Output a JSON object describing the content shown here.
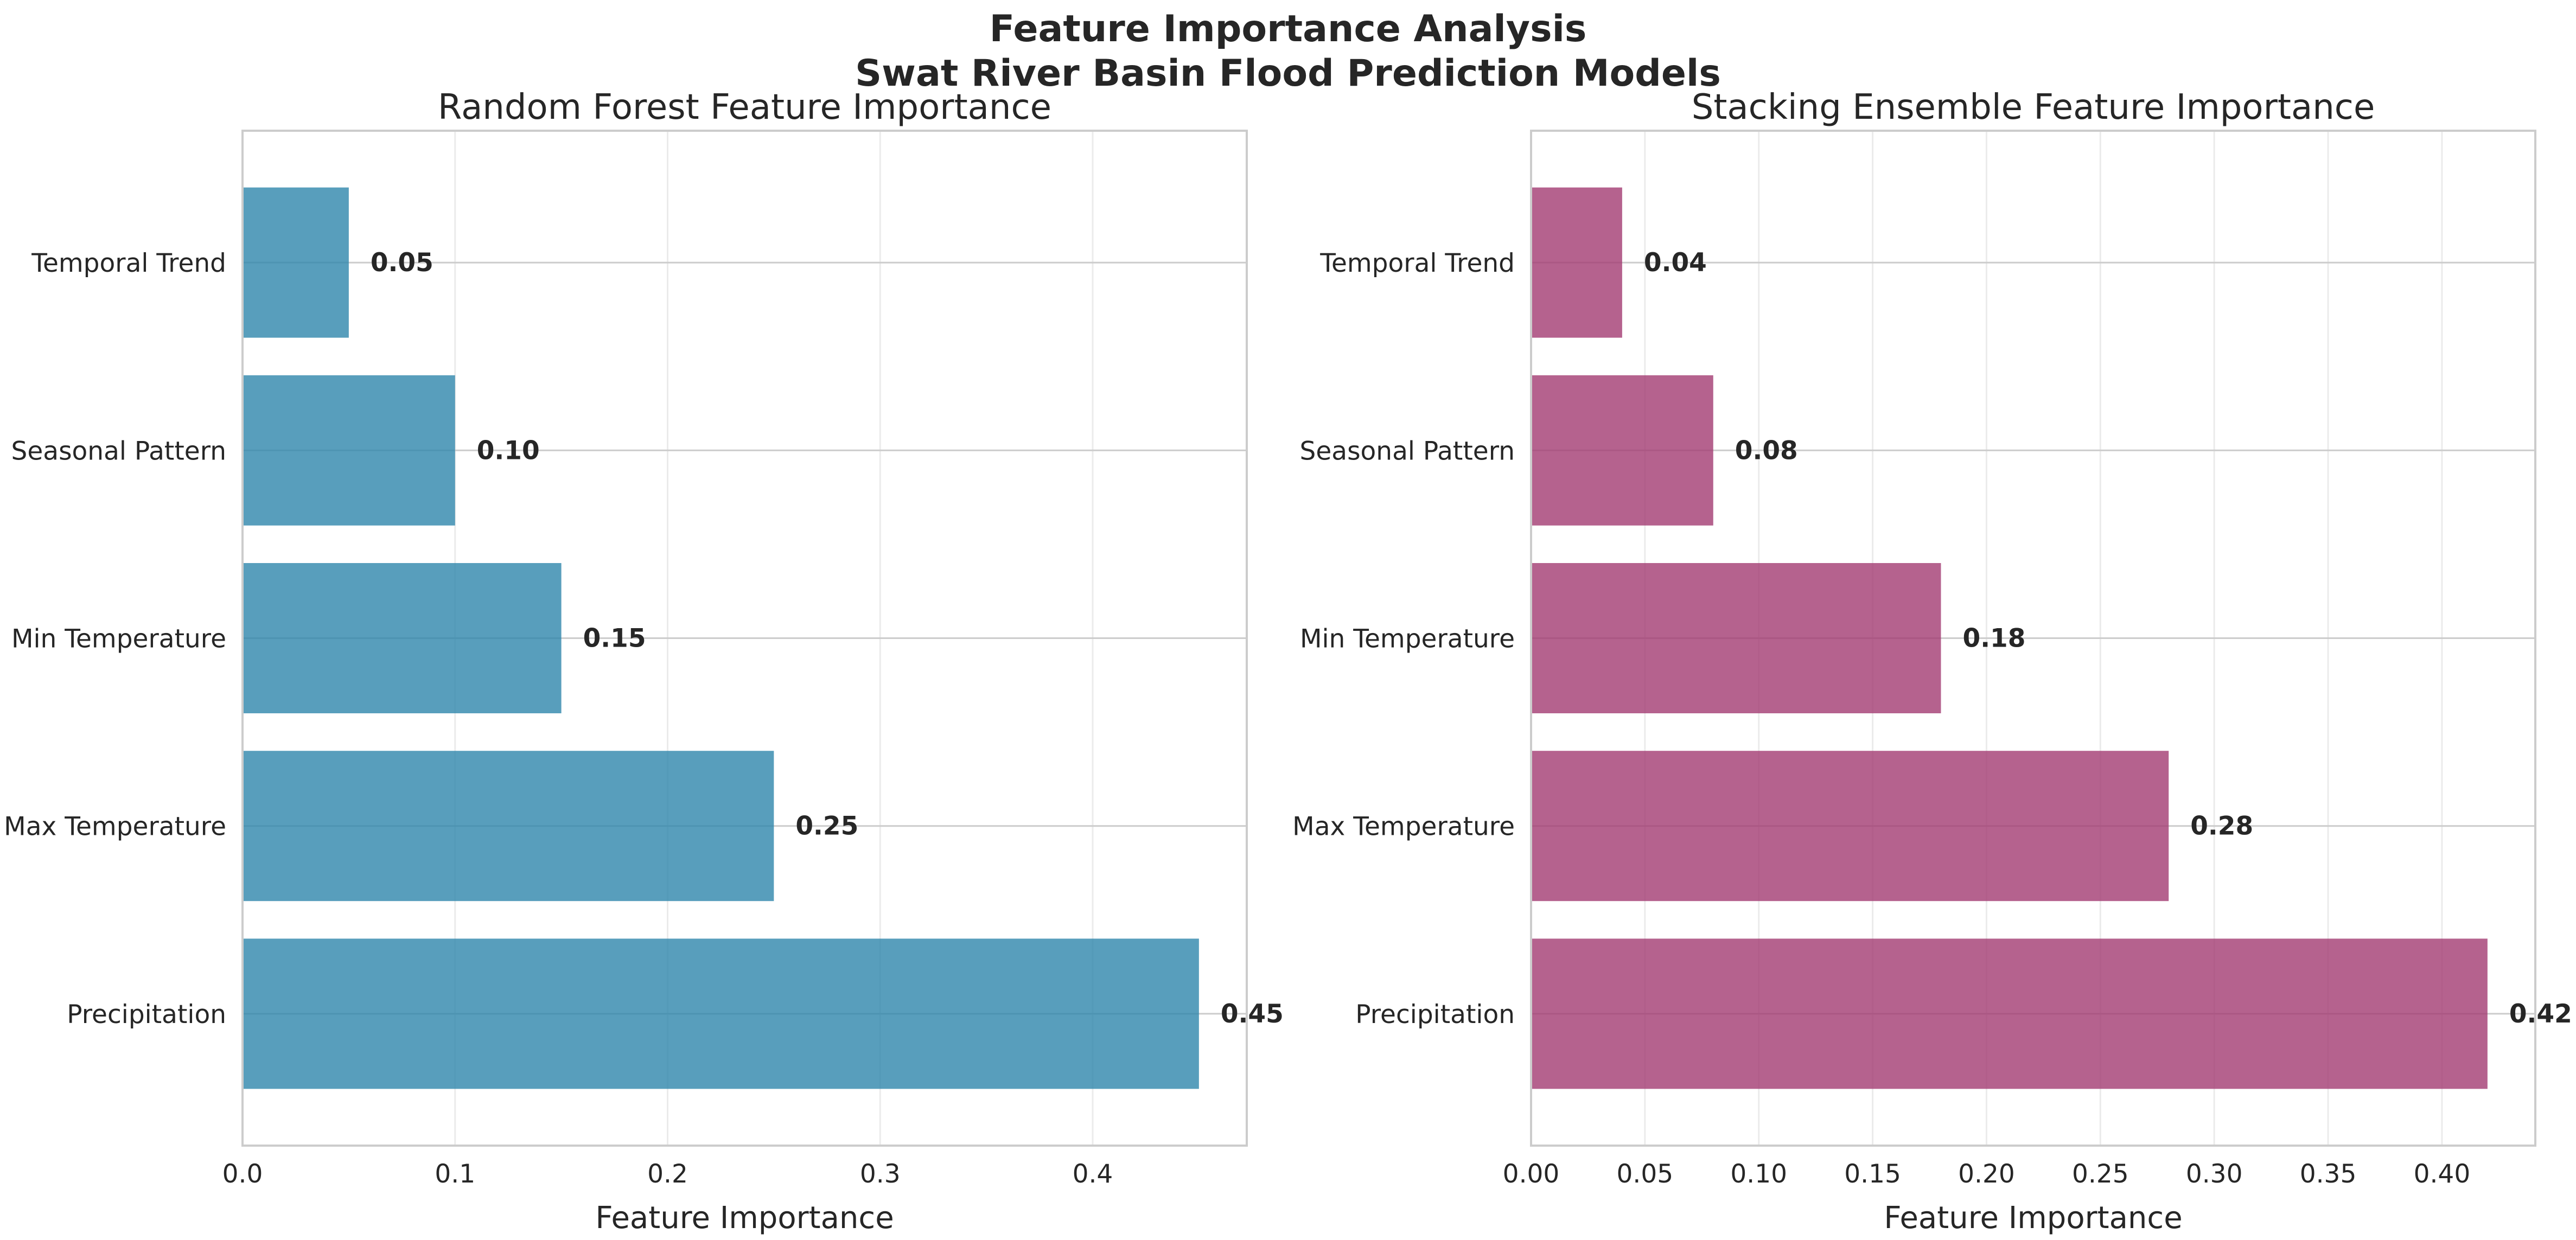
{
  "figure": {
    "title_line1": "Feature Importance Analysis",
    "title_line2": "Swat River Basin Flood Prediction Models"
  },
  "chart_data": [
    {
      "type": "bar",
      "orientation": "horizontal",
      "title": "Random Forest Feature Importance",
      "xlabel": "Feature Importance",
      "ylabel": "",
      "categories": [
        "Precipitation",
        "Max Temperature",
        "Min Temperature",
        "Seasonal Pattern",
        "Temporal Trend"
      ],
      "values": [
        0.45,
        0.25,
        0.15,
        0.1,
        0.05
      ],
      "value_labels": [
        "0.45",
        "0.25",
        "0.15",
        "0.10",
        "0.05"
      ],
      "xlim": [
        0,
        0.4725
      ],
      "xticks": [
        0,
        0.1,
        0.2,
        0.3,
        0.4
      ],
      "xtick_labels": [
        "0.0",
        "0.1",
        "0.2",
        "0.3",
        "0.4"
      ],
      "grid": true,
      "bar_color": "#2E86AB"
    },
    {
      "type": "bar",
      "orientation": "horizontal",
      "title": "Stacking Ensemble Feature Importance",
      "xlabel": "Feature Importance",
      "ylabel": "",
      "categories": [
        "Precipitation",
        "Max Temperature",
        "Min Temperature",
        "Seasonal Pattern",
        "Temporal Trend"
      ],
      "values": [
        0.42,
        0.28,
        0.18,
        0.08,
        0.04
      ],
      "value_labels": [
        "0.42",
        "0.28",
        "0.18",
        "0.08",
        "0.04"
      ],
      "xlim": [
        0,
        0.441
      ],
      "xticks": [
        0,
        0.05,
        0.1,
        0.15,
        0.2,
        0.25,
        0.3,
        0.35,
        0.4
      ],
      "xtick_labels": [
        "0.00",
        "0.05",
        "0.10",
        "0.15",
        "0.20",
        "0.25",
        "0.30",
        "0.35",
        "0.40"
      ],
      "grid": true,
      "bar_color": "#A23B72"
    }
  ]
}
